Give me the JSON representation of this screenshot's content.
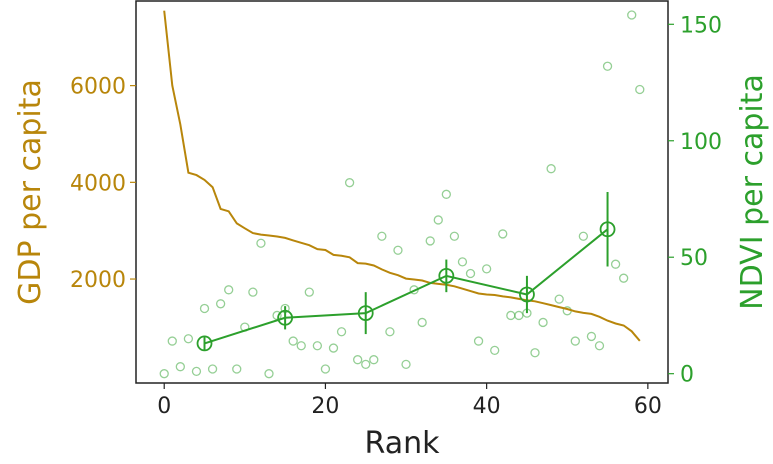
{
  "chart_data": {
    "type": "line",
    "xlabel": "Rank",
    "ylabel_left": "GDP per capita",
    "ylabel_right": "NDVI per capita",
    "xlim": [
      -3.5,
      62.5
    ],
    "ylim_left": [
      -150,
      7750
    ],
    "ylim_right": [
      -4,
      160
    ],
    "xticks": [
      0,
      20,
      40,
      60
    ],
    "yticks_left": [
      2000,
      4000,
      6000
    ],
    "yticks_right": [
      0,
      50,
      100,
      150
    ],
    "colors": {
      "gdp": "#b8860b",
      "ndvi": "#2ca02c",
      "axis": "#222222"
    },
    "gdp_line": {
      "x": [
        0,
        1,
        2,
        3,
        4,
        5,
        6,
        7,
        8,
        9,
        10,
        11,
        12,
        13,
        14,
        15,
        16,
        17,
        18,
        19,
        20,
        21,
        22,
        23,
        24,
        25,
        26,
        27,
        28,
        29,
        30,
        31,
        32,
        33,
        34,
        35,
        36,
        37,
        38,
        39,
        40,
        41,
        42,
        43,
        44,
        45,
        46,
        47,
        48,
        49,
        50,
        51,
        52,
        53,
        54,
        55,
        56,
        57,
        58,
        59
      ],
      "y": [
        7550,
        6000,
        5200,
        4200,
        4150,
        4050,
        3900,
        3450,
        3400,
        3150,
        3050,
        2950,
        2920,
        2900,
        2880,
        2850,
        2800,
        2750,
        2700,
        2620,
        2600,
        2500,
        2480,
        2450,
        2330,
        2320,
        2280,
        2200,
        2130,
        2080,
        2010,
        1990,
        1970,
        1920,
        1900,
        1880,
        1850,
        1800,
        1750,
        1700,
        1680,
        1670,
        1640,
        1620,
        1590,
        1560,
        1540,
        1500,
        1460,
        1420,
        1380,
        1330,
        1300,
        1280,
        1220,
        1140,
        1080,
        1040,
        920,
        720
      ]
    },
    "ndvi_scatter": {
      "points": [
        [
          0,
          0
        ],
        [
          1,
          14
        ],
        [
          2,
          3
        ],
        [
          3,
          15
        ],
        [
          4,
          1
        ],
        [
          5,
          28
        ],
        [
          6,
          2
        ],
        [
          7,
          30
        ],
        [
          8,
          36
        ],
        [
          9,
          2
        ],
        [
          10,
          20
        ],
        [
          11,
          35
        ],
        [
          12,
          56
        ],
        [
          13,
          0
        ],
        [
          14,
          25
        ],
        [
          15,
          28
        ],
        [
          16,
          14
        ],
        [
          17,
          12
        ],
        [
          18,
          35
        ],
        [
          19,
          12
        ],
        [
          20,
          2
        ],
        [
          21,
          11
        ],
        [
          22,
          18
        ],
        [
          23,
          82
        ],
        [
          24,
          6
        ],
        [
          25,
          4
        ],
        [
          26,
          6
        ],
        [
          27,
          59
        ],
        [
          28,
          18
        ],
        [
          29,
          53
        ],
        [
          30,
          4
        ],
        [
          31,
          36
        ],
        [
          32,
          22
        ],
        [
          33,
          57
        ],
        [
          34,
          66
        ],
        [
          35,
          77
        ],
        [
          36,
          59
        ],
        [
          37,
          48
        ],
        [
          38,
          43
        ],
        [
          39,
          14
        ],
        [
          40,
          45
        ],
        [
          41,
          10
        ],
        [
          42,
          60
        ],
        [
          43,
          25
        ],
        [
          44,
          25
        ],
        [
          45,
          26
        ],
        [
          46,
          9
        ],
        [
          47,
          22
        ],
        [
          48,
          88
        ],
        [
          49,
          32
        ],
        [
          50,
          27
        ],
        [
          51,
          14
        ],
        [
          52,
          59
        ],
        [
          53,
          16
        ],
        [
          54,
          12
        ],
        [
          55,
          132
        ],
        [
          56,
          47
        ],
        [
          57,
          41
        ],
        [
          58,
          154
        ],
        [
          59,
          122
        ]
      ]
    },
    "ndvi_binned": {
      "x": [
        5,
        15,
        25,
        35,
        45,
        55
      ],
      "y": [
        13,
        24,
        26,
        42,
        34,
        62
      ],
      "err": [
        3,
        5,
        9,
        7,
        8,
        16
      ]
    }
  }
}
